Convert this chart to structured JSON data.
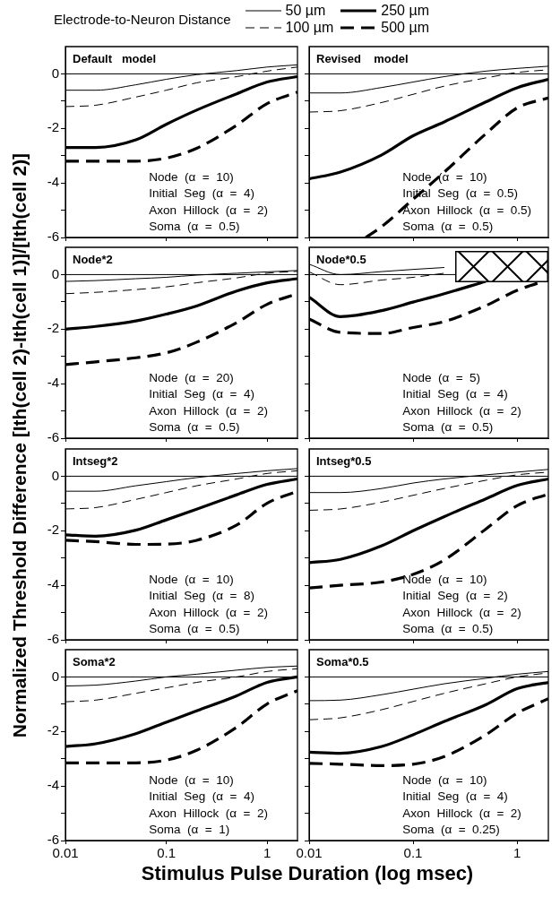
{
  "chart_data": [
    {
      "type": "line",
      "title": "Default   model",
      "ylabel": "Normalized Threshold Difference [Ith(cell 2)-Ith(cell 1)]/[Ith(cell 2)]",
      "legend_title": "Electrode-to-Neuron Distance",
      "legend": "top",
      "log": "x",
      "tick_labels": "y",
      "xlim": [
        0.01,
        2
      ],
      "xticks": [
        0.01,
        0.1,
        1
      ],
      "ylim": [
        -6,
        1
      ],
      "yticks": [
        -6,
        {
          "value": -5,
          "label": null
        },
        -4,
        {
          "value": -3,
          "label": null
        },
        -2,
        {
          "value": -1,
          "label": null
        },
        0
      ],
      "ref_lines": [
        {
          "axis": "y",
          "value": 0
        }
      ],
      "annotations": [
        "Node  (α  =  10)",
        "Initial  Seg  (α  =  4)",
        "Axon  Hillock  (α  =  2)",
        "Soma  (α  =  0.5)"
      ],
      "x": [
        0.01,
        0.02,
        0.05,
        0.1,
        0.2,
        0.5,
        1,
        2
      ],
      "series": [
        {
          "name": "50 µm",
          "color": "#000000",
          "line_style": "solid",
          "values": [
            -0.6,
            -0.6,
            -0.4,
            -0.2,
            -0.03,
            0.12,
            0.25,
            0.33
          ]
        },
        {
          "name": "100 µm",
          "color": "#000000",
          "line_style": "dashed",
          "values": [
            -1.2,
            -1.15,
            -0.85,
            -0.6,
            -0.33,
            -0.1,
            0.1,
            0.25
          ]
        },
        {
          "name": "250 µm",
          "color": "#000000",
          "line_style": "solid",
          "values": [
            -2.7,
            -2.7,
            -2.42,
            -1.85,
            -1.33,
            -0.73,
            -0.3,
            -0.1
          ]
        },
        {
          "name": "500 µm",
          "color": "#000000",
          "line_style": "dashed",
          "values": [
            -3.2,
            -3.2,
            -3.2,
            -3.09,
            -2.73,
            -1.88,
            -1.09,
            -0.67
          ]
        }
      ]
    },
    {
      "type": "line",
      "title": "Revised    model",
      "log": "x",
      "tick_labels": false,
      "xlim": [
        0.01,
        2
      ],
      "xticks": [
        0.01,
        0.1,
        1
      ],
      "ylim": [
        -6,
        1
      ],
      "yticks": [
        -6,
        {
          "value": -5,
          "label": null
        },
        -4,
        {
          "value": -3,
          "label": null
        },
        -2,
        {
          "value": -1,
          "label": null
        },
        0
      ],
      "ref_lines": [
        {
          "axis": "y",
          "value": 0
        }
      ],
      "annotations": [
        "Node  (α  =  10)",
        "Initial  Seg  (α  =  0.5)",
        "Axon  Hillock  (α  =  0.5)",
        "Soma  (α  =  0.5)"
      ],
      "x": [
        0.01,
        0.02,
        0.05,
        0.1,
        0.2,
        0.5,
        1,
        2
      ],
      "series": [
        {
          "color": "#000000",
          "line_style": "solid",
          "values": [
            -0.7,
            -0.7,
            -0.5,
            -0.3,
            -0.1,
            0.1,
            0.2,
            0.28
          ]
        },
        {
          "color": "#000000",
          "line_style": "dashed",
          "values": [
            -1.4,
            -1.35,
            -1.05,
            -0.75,
            -0.45,
            -0.15,
            0.05,
            0.15
          ]
        },
        {
          "color": "#000000",
          "line_style": "solid",
          "values": [
            -3.85,
            -3.6,
            -2.97,
            -2.27,
            -1.76,
            -1.03,
            -0.51,
            -0.2
          ]
        },
        {
          "color": "#000000",
          "line_style": "dashed",
          "x": [
            0.035,
            0.05,
            0.1,
            0.2,
            0.5,
            1,
            2
          ],
          "values": [
            -6,
            -5.6,
            -4.6,
            -3.6,
            -2.2,
            -1.25,
            -0.88
          ]
        }
      ]
    },
    {
      "type": "line",
      "title": "Node*2",
      "log": "x",
      "tick_labels": "y",
      "xlim": [
        0.01,
        2
      ],
      "xticks": [
        0.01,
        0.1,
        1
      ],
      "ylim": [
        -6,
        1
      ],
      "yticks": [
        -6,
        {
          "value": -5,
          "label": null
        },
        -4,
        {
          "value": -3,
          "label": null
        },
        -2,
        {
          "value": -1,
          "label": null
        },
        0
      ],
      "ref_lines": [
        {
          "axis": "y",
          "value": 0
        }
      ],
      "annotations": [
        "Node  (α  =  20)",
        "Initial  Seg  (α  =  4)",
        "Axon  Hillock  (α  =  2)",
        "Soma  (α  =  0.5)"
      ],
      "x": [
        0.01,
        0.02,
        0.05,
        0.1,
        0.2,
        0.5,
        1,
        2
      ],
      "series": [
        {
          "color": "#000000",
          "line_style": "solid",
          "values": [
            -0.25,
            -0.22,
            -0.15,
            -0.1,
            -0.02,
            0.05,
            0.1,
            0.15
          ]
        },
        {
          "color": "#000000",
          "line_style": "dashed",
          "values": [
            -0.7,
            -0.65,
            -0.55,
            -0.45,
            -0.3,
            -0.12,
            0.05,
            0.12
          ]
        },
        {
          "color": "#000000",
          "line_style": "solid",
          "values": [
            -2,
            -1.9,
            -1.7,
            -1.45,
            -1.15,
            -0.6,
            -0.3,
            -0.15
          ]
        },
        {
          "color": "#000000",
          "line_style": "dashed",
          "values": [
            -3.3,
            -3.2,
            -3.05,
            -2.87,
            -2.48,
            -1.76,
            -1.09,
            -0.7
          ]
        }
      ]
    },
    {
      "type": "line",
      "title": "Node*0.5",
      "log": "x",
      "tick_labels": false,
      "xlim": [
        0.01,
        2
      ],
      "xticks": [
        0.01,
        0.1,
        1
      ],
      "ylim": [
        -6,
        1
      ],
      "yticks": [
        -6,
        {
          "value": -5,
          "label": null
        },
        -4,
        {
          "value": -3,
          "label": null
        },
        -2,
        {
          "value": -1,
          "label": null
        },
        0
      ],
      "ref_lines": [
        {
          "axis": "y",
          "value": 0
        }
      ],
      "annotations": [
        "Node  (α  =  5)",
        "Initial  Seg  (α  =  4)",
        "Axon  Hillock  (α  =  2)",
        "Soma  (α  =  0.5)"
      ],
      "x": [
        0.01,
        0.02,
        0.05,
        0.1,
        0.2,
        0.5,
        1,
        2
      ],
      "series": [
        {
          "color": "#000000",
          "line_style": "solid",
          "values": [
            0.38,
            0,
            0.11,
            0.19,
            0.26,
            null,
            null,
            null
          ]
        },
        {
          "color": "#000000",
          "line_style": "dashed",
          "values": [
            0.1,
            -0.37,
            -0.2,
            -0.1,
            0.05,
            null,
            null,
            null
          ]
        },
        {
          "color": "#000000",
          "line_style": "solid",
          "values": [
            -0.83,
            -1.54,
            -1.32,
            -1.01,
            -0.7,
            -0.25,
            null,
            null
          ]
        },
        {
          "color": "#000000",
          "line_style": "dashed",
          "values": [
            -1.63,
            -2.12,
            -2.16,
            -1.94,
            -1.72,
            -1.14,
            -0.58,
            -0.19
          ]
        }
      ]
    },
    {
      "type": "line",
      "title": "Intseg*2",
      "log": "x",
      "tick_labels": "y",
      "xlim": [
        0.01,
        2
      ],
      "xticks": [
        0.01,
        0.1,
        1
      ],
      "ylim": [
        -6,
        1
      ],
      "yticks": [
        -6,
        {
          "value": -5,
          "label": null
        },
        -4,
        {
          "value": -3,
          "label": null
        },
        -2,
        {
          "value": -1,
          "label": null
        },
        0
      ],
      "ref_lines": [
        {
          "axis": "y",
          "value": 0
        }
      ],
      "annotations": [
        "Node  (α  =  10)",
        "Initial  Seg  (α  =  8)",
        "Axon  Hillock  (α  =  2)",
        "Soma  (α  =  0.5)"
      ],
      "x": [
        0.01,
        0.02,
        0.05,
        0.1,
        0.2,
        0.5,
        1,
        2
      ],
      "series": [
        {
          "color": "#000000",
          "line_style": "solid",
          "values": [
            -0.55,
            -0.55,
            -0.35,
            -0.2,
            -0.05,
            0.1,
            0.2,
            0.28
          ]
        },
        {
          "color": "#000000",
          "line_style": "dashed",
          "values": [
            -1.2,
            -1.15,
            -0.85,
            -0.6,
            -0.35,
            -0.1,
            0.1,
            0.2
          ]
        },
        {
          "color": "#000000",
          "line_style": "solid",
          "values": [
            -2.15,
            -2.2,
            -1.98,
            -1.6,
            -1.21,
            -0.68,
            -0.3,
            -0.1
          ]
        },
        {
          "color": "#000000",
          "line_style": "dashed",
          "values": [
            -2.35,
            -2.4,
            -2.5,
            -2.49,
            -2.35,
            -1.79,
            -0.99,
            -0.55
          ]
        }
      ]
    },
    {
      "type": "line",
      "title": "Intseg*0.5",
      "log": "x",
      "tick_labels": false,
      "xlim": [
        0.01,
        2
      ],
      "xticks": [
        0.01,
        0.1,
        1
      ],
      "ylim": [
        -6,
        1
      ],
      "yticks": [
        -6,
        {
          "value": -5,
          "label": null
        },
        -4,
        {
          "value": -3,
          "label": null
        },
        -2,
        {
          "value": -1,
          "label": null
        },
        0
      ],
      "ref_lines": [
        {
          "axis": "y",
          "value": 0
        }
      ],
      "annotations": [
        "Node  (α  =  10)",
        "Initial  Seg  (α  =  2)",
        "Axon  Hillock  (α  =  2)",
        "Soma  (α  =  0.5)"
      ],
      "x": [
        0.01,
        0.02,
        0.05,
        0.1,
        0.2,
        0.5,
        1,
        2
      ],
      "series": [
        {
          "color": "#000000",
          "line_style": "solid",
          "values": [
            -0.6,
            -0.6,
            -0.45,
            -0.25,
            -0.1,
            0.05,
            0.15,
            0.25
          ]
        },
        {
          "color": "#000000",
          "line_style": "dashed",
          "values": [
            -1.25,
            -1.2,
            -0.95,
            -0.7,
            -0.45,
            -0.15,
            0.05,
            0.15
          ]
        },
        {
          "color": "#000000",
          "line_style": "solid",
          "values": [
            -3.17,
            -3.05,
            -2.55,
            -2,
            -1.48,
            -0.83,
            -0.34,
            -0.1
          ]
        },
        {
          "color": "#000000",
          "line_style": "dashed",
          "values": [
            -4.1,
            -4,
            -3.88,
            -3.6,
            -3.07,
            -1.94,
            -1.08,
            -0.65
          ]
        }
      ]
    },
    {
      "type": "line",
      "title": "Soma*2",
      "xlabel": "Stimulus Pulse Duration (log msec)",
      "log": "x",
      "xlim": [
        0.01,
        2
      ],
      "xticks": [
        0.01,
        0.1,
        1
      ],
      "ylim": [
        -6,
        1
      ],
      "yticks": [
        -6,
        {
          "value": -5,
          "label": null
        },
        -4,
        {
          "value": -3,
          "label": null
        },
        -2,
        {
          "value": -1,
          "label": null
        },
        0
      ],
      "ref_lines": [
        {
          "axis": "y",
          "value": 0
        }
      ],
      "annotations": [
        "Node  (α  =  10)",
        "Initial  Seg  (α  =  4)",
        "Axon  Hillock  (α  =  2)",
        "Soma  (α  =  1)"
      ],
      "x": [
        0.01,
        0.02,
        0.05,
        0.1,
        0.2,
        0.5,
        1,
        2
      ],
      "series": [
        {
          "color": "#000000",
          "line_style": "solid",
          "values": [
            -0.33,
            -0.3,
            -0.15,
            0,
            0.1,
            0.25,
            0.35,
            0.4
          ]
        },
        {
          "color": "#000000",
          "line_style": "dashed",
          "values": [
            -0.91,
            -0.85,
            -0.6,
            -0.4,
            -0.2,
            0,
            0.2,
            0.3
          ]
        },
        {
          "color": "#000000",
          "line_style": "solid",
          "values": [
            -2.55,
            -2.45,
            -2.08,
            -1.66,
            -1.24,
            -0.69,
            -0.2,
            0
          ]
        },
        {
          "color": "#000000",
          "line_style": "dashed",
          "values": [
            -3.15,
            -3.15,
            -3.15,
            -3.05,
            -2.69,
            -1.84,
            -0.99,
            -0.5
          ]
        }
      ]
    },
    {
      "type": "line",
      "title": "Soma*0.5",
      "log": "x",
      "tick_labels": "x",
      "xlim": [
        0.01,
        2
      ],
      "xticks": [
        0.01,
        0.1,
        1
      ],
      "ylim": [
        -6,
        1
      ],
      "yticks": [
        -6,
        {
          "value": -5,
          "label": null
        },
        -4,
        {
          "value": -3,
          "label": null
        },
        -2,
        {
          "value": -1,
          "label": null
        },
        0
      ],
      "ref_lines": [
        {
          "axis": "y",
          "value": 0
        }
      ],
      "annotations": [
        "Node  (α  =  10)",
        "Initial  Seg  (α  =  4)",
        "Axon  Hillock  (α  =  2)",
        "Soma  (α  =  0.25)"
      ],
      "x": [
        0.01,
        0.02,
        0.05,
        0.1,
        0.2,
        0.5,
        1,
        2
      ],
      "series": [
        {
          "color": "#000000",
          "line_style": "solid",
          "values": [
            -0.87,
            -0.85,
            -0.65,
            -0.45,
            -0.25,
            -0.05,
            0.1,
            0.2
          ]
        },
        {
          "color": "#000000",
          "line_style": "dashed",
          "values": [
            -1.57,
            -1.5,
            -1.2,
            -0.9,
            -0.6,
            -0.25,
            0,
            0.15
          ]
        },
        {
          "color": "#000000",
          "line_style": "solid",
          "values": [
            -2.76,
            -2.8,
            -2.55,
            -2.12,
            -1.63,
            -1.02,
            -0.43,
            -0.2
          ]
        },
        {
          "color": "#000000",
          "line_style": "dashed",
          "values": [
            -3.17,
            -3.2,
            -3.25,
            -3.2,
            -2.92,
            -2.12,
            -1.33,
            -0.8
          ]
        }
      ]
    }
  ]
}
